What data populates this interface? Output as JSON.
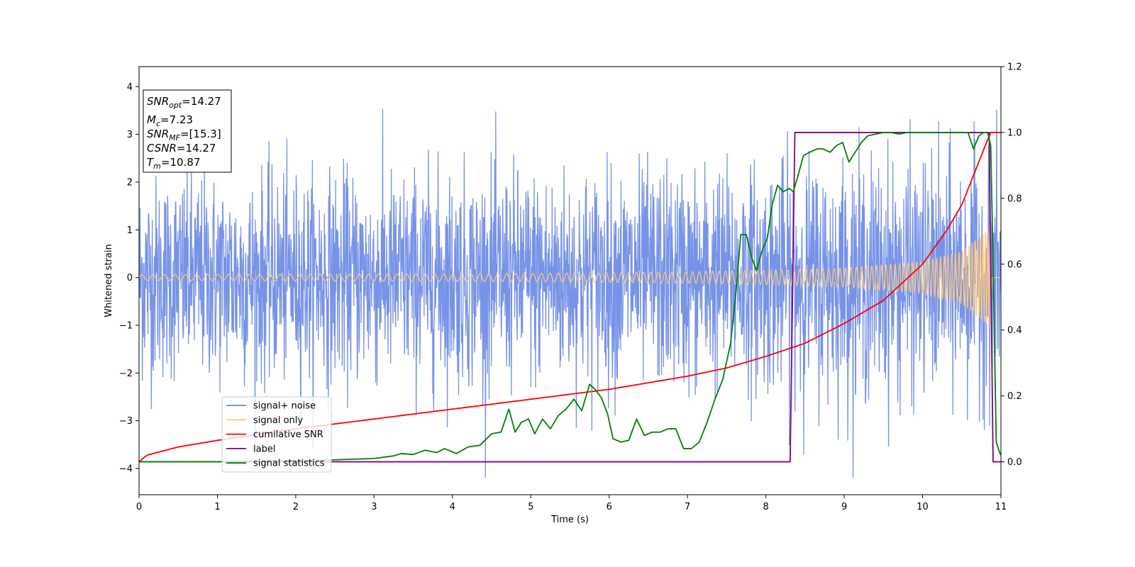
{
  "chart_data": {
    "type": "line",
    "xlabel": "Time (s)",
    "ylabel": "Whitened strain",
    "xlim": [
      0,
      11
    ],
    "ylim": [
      -4.55,
      4.42
    ],
    "y2lim": [
      -0.1,
      1.2
    ],
    "xticks": [
      "0",
      "1",
      "2",
      "3",
      "4",
      "5",
      "6",
      "7",
      "8",
      "9",
      "10",
      "11"
    ],
    "yticks": [
      "4",
      "3",
      "2",
      "1",
      "0",
      "−1",
      "−2",
      "−3",
      "−4"
    ],
    "y2ticks": [
      "1.2",
      "1.0",
      "0.8",
      "0.6",
      "0.4",
      "0.2",
      "0.0"
    ],
    "grid": false,
    "legend_position": "lower-left",
    "annotation": {
      "lines": [
        {
          "sym": "SNR",
          "sub": "opt",
          "text": "=14.27"
        },
        {
          "sym": "M",
          "sub": "c",
          "text": "=7.23"
        },
        {
          "sym": "SNR",
          "sub": "MF",
          "text": "=[15.3]"
        },
        {
          "sym": "CSNR",
          "sub": "",
          "text": "=14.27"
        },
        {
          "sym": "T",
          "sub": "m",
          "text": "=10.87"
        }
      ]
    },
    "series": [
      {
        "name": "signal+ noise",
        "axis": "left",
        "color": "#6b8ae6",
        "note_sampling": "noise-like, roughly symmetric about 0; typical extent about ±2.2, peaks near ±4",
        "envelope": {
          "t": [
            0,
            2,
            4,
            6,
            8,
            9,
            10,
            11
          ],
          "typical_amplitude": [
            2.0,
            2.0,
            2.1,
            2.1,
            2.2,
            2.3,
            2.3,
            2.3
          ],
          "peak_max": 4.0
        }
      },
      {
        "name": "signal only",
        "axis": "left",
        "color": "#ffc87a",
        "note_sampling": "chirp, amplitude grows toward merger at ~10.87 s",
        "amplitude": {
          "t": [
            0,
            2,
            4,
            6,
            7,
            8,
            9,
            10,
            10.5,
            10.8,
            10.87
          ],
          "a": [
            0.06,
            0.07,
            0.08,
            0.1,
            0.12,
            0.15,
            0.2,
            0.33,
            0.55,
            0.95,
            1.1
          ]
        },
        "frequency_hz": {
          "t": [
            0,
            5,
            9,
            10.5,
            10.87
          ],
          "f": [
            7,
            9,
            14,
            22,
            35
          ]
        }
      },
      {
        "name": "cumilative SNR",
        "axis": "right",
        "color": "#ff0000",
        "x": [
          0,
          0.1,
          0.5,
          1,
          2,
          3,
          4,
          5,
          6,
          7,
          7.5,
          8,
          8.5,
          9,
          9.5,
          10,
          10.3,
          10.5,
          10.7,
          10.8,
          10.87,
          11
        ],
        "y": [
          0.0,
          0.02,
          0.045,
          0.065,
          0.1,
          0.13,
          0.16,
          0.19,
          0.22,
          0.26,
          0.285,
          0.32,
          0.36,
          0.42,
          0.49,
          0.6,
          0.7,
          0.78,
          0.9,
          0.96,
          1.0,
          1.0
        ]
      },
      {
        "name": "label",
        "axis": "right",
        "color": "#800080",
        "x": [
          0,
          8.31,
          8.37,
          10.85,
          10.9,
          11
        ],
        "y": [
          0,
          0,
          1,
          1,
          0,
          0
        ]
      },
      {
        "name": "signal statistics",
        "axis": "right",
        "color": "#008000",
        "x": [
          0,
          1,
          2,
          2.5,
          3,
          3.25,
          3.35,
          3.5,
          3.65,
          3.8,
          3.9,
          4.05,
          4.2,
          4.35,
          4.5,
          4.62,
          4.72,
          4.8,
          4.88,
          4.97,
          5.05,
          5.15,
          5.25,
          5.35,
          5.45,
          5.55,
          5.65,
          5.75,
          5.82,
          5.9,
          5.98,
          6.05,
          6.15,
          6.25,
          6.35,
          6.45,
          6.55,
          6.65,
          6.75,
          6.85,
          6.95,
          7.05,
          7.15,
          7.25,
          7.35,
          7.45,
          7.55,
          7.62,
          7.68,
          7.75,
          7.82,
          7.88,
          7.95,
          8.02,
          8.08,
          8.15,
          8.22,
          8.3,
          8.35,
          8.4,
          8.48,
          8.56,
          8.65,
          8.73,
          8.82,
          8.9,
          8.98,
          9.06,
          9.14,
          9.22,
          9.3,
          9.4,
          9.5,
          9.6,
          9.7,
          9.8,
          9.9,
          10.0,
          10.1,
          10.2,
          10.3,
          10.4,
          10.5,
          10.58,
          10.65,
          10.72,
          10.78,
          10.83,
          10.87,
          10.9,
          10.94,
          10.98,
          11.0
        ],
        "y": [
          0.0,
          0.0,
          0.003,
          0.006,
          0.01,
          0.018,
          0.025,
          0.022,
          0.035,
          0.028,
          0.04,
          0.025,
          0.045,
          0.05,
          0.085,
          0.09,
          0.16,
          0.09,
          0.12,
          0.13,
          0.085,
          0.13,
          0.1,
          0.14,
          0.16,
          0.19,
          0.155,
          0.235,
          0.22,
          0.195,
          0.145,
          0.07,
          0.06,
          0.065,
          0.13,
          0.08,
          0.09,
          0.09,
          0.1,
          0.1,
          0.04,
          0.04,
          0.06,
          0.12,
          0.19,
          0.25,
          0.36,
          0.52,
          0.69,
          0.69,
          0.62,
          0.58,
          0.64,
          0.68,
          0.78,
          0.84,
          0.82,
          0.83,
          0.82,
          0.86,
          0.93,
          0.94,
          0.95,
          0.95,
          0.94,
          0.96,
          0.97,
          0.91,
          0.94,
          0.97,
          0.99,
          0.995,
          1.0,
          1.0,
          0.995,
          1.0,
          1.0,
          1.0,
          1.0,
          1.0,
          1.0,
          1.0,
          1.0,
          1.0,
          0.95,
          0.99,
          1.0,
          1.0,
          0.96,
          0.6,
          0.06,
          0.03,
          0.02
        ]
      }
    ]
  }
}
